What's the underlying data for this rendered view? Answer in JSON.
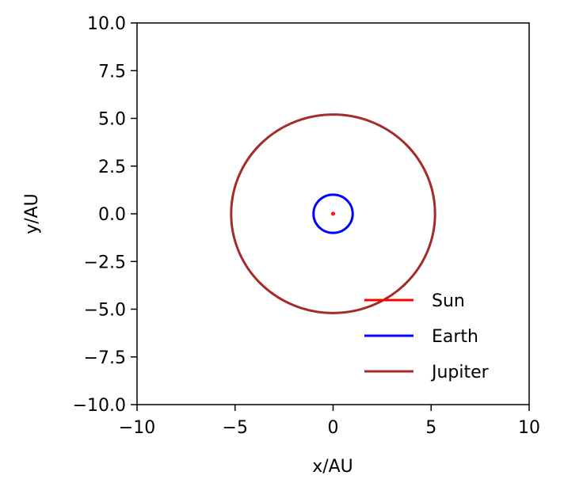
{
  "chart_data": {
    "type": "line",
    "title": "",
    "xlabel": "x/AU",
    "ylabel": "y/AU",
    "xlim": [
      -10,
      10
    ],
    "ylim": [
      -10,
      10
    ],
    "xticks": [
      -10,
      -5,
      0,
      5,
      10
    ],
    "xtick_labels": [
      "−10",
      "−5",
      "0",
      "5",
      "10"
    ],
    "yticks": [
      10,
      7.5,
      5,
      2.5,
      0,
      -2.5,
      -5,
      -7.5,
      -10
    ],
    "ytick_labels": [
      "10.0",
      "7.5",
      "5.0",
      "2.5",
      "0.0",
      "−2.5",
      "−5.0",
      "−7.5",
      "−10.0"
    ],
    "grid": false,
    "legend_position": "bottom-right",
    "series": [
      {
        "name": "Sun",
        "color": "#ff0000",
        "orbit_radius": 0.03,
        "center": [
          0,
          0
        ]
      },
      {
        "name": "Earth",
        "color": "#0000ff",
        "orbit_radius": 1.0,
        "center": [
          0,
          0
        ]
      },
      {
        "name": "Jupiter",
        "color": "#a52a2a",
        "orbit_radius": 5.2,
        "center": [
          0,
          0
        ]
      }
    ]
  }
}
